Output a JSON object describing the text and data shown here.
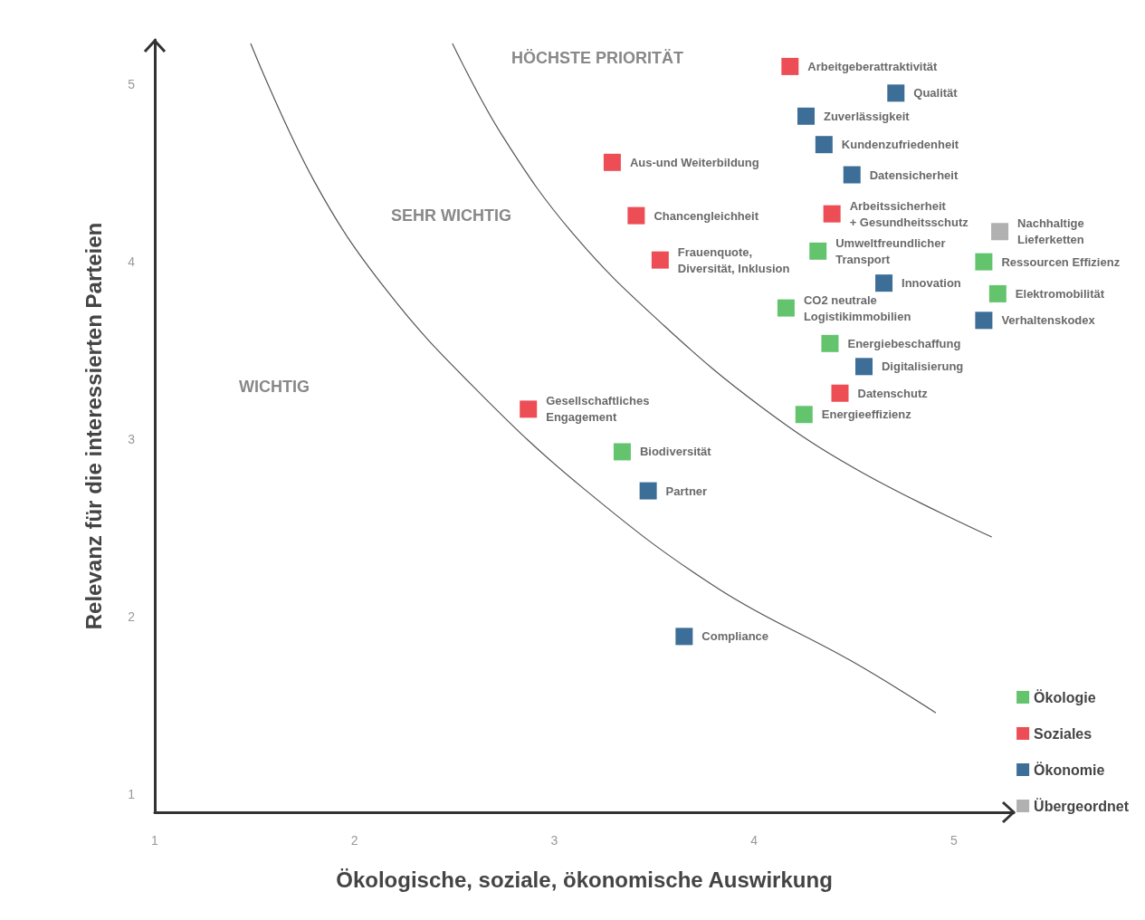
{
  "chart_data": {
    "type": "scatter",
    "xlabel": "Ökologische, soziale, ökonomische Auswirkung",
    "ylabel": "Relevanz für die interessierten Parteien",
    "xlim": [
      1,
      5.3
    ],
    "ylim": [
      0.9,
      5.25
    ],
    "xticks": [
      1,
      2,
      3,
      4,
      5
    ],
    "yticks": [
      1,
      2,
      3,
      4,
      5
    ],
    "grid": false,
    "legend": "bottom right",
    "marker": "square",
    "annotations": [
      "HÖCHSTE PRIORITÄT",
      "SEHR WICHTIG",
      "WICHTIG"
    ],
    "series": [
      {
        "name": "Ökologie",
        "color": "#3db54a",
        "x": [
          4.32,
          5.15,
          5.22,
          4.16,
          4.38,
          4.25,
          3.34
        ],
        "values": [
          4.06,
          4.0,
          3.82,
          3.74,
          3.54,
          3.14,
          2.93
        ],
        "value_labels": [
          "Umweltfreundlicher\nTransport",
          "Ressourcen Effizienz",
          "Elektromobilität",
          "CO2 neutrale\nLogistikimmobilien",
          "Energiebeschaffung",
          "Energieeffizienz",
          "Biodiversität"
        ]
      },
      {
        "name": "Soziales",
        "color": "#e8202a",
        "x": [
          4.18,
          3.29,
          3.41,
          4.39,
          3.53,
          4.43,
          2.87
        ],
        "values": [
          5.1,
          4.56,
          4.26,
          4.27,
          4.01,
          3.26,
          3.17
        ],
        "value_labels": [
          "Arbeitgeberattraktivität",
          "Aus-und Weiterbildung",
          "Chancengleichheit",
          "Arbeitssicherheit\n+ Gesundheitsschutz",
          "Frauenquote,\nDiversität, Inklusion",
          "Datenschutz",
          "Gesellschaftliches\nEngagement"
        ]
      },
      {
        "name": "Ökonomie",
        "color": "#0b4a7e",
        "x": [
          4.71,
          4.26,
          4.35,
          4.49,
          4.65,
          5.15,
          4.55,
          3.47,
          3.65
        ],
        "values": [
          4.95,
          4.82,
          4.66,
          4.49,
          3.88,
          3.67,
          3.41,
          2.71,
          1.89
        ],
        "value_labels": [
          "Qualität",
          "Zuverlässigkeit",
          "Kundenzufriedenheit",
          "Datensicherheit",
          "Innovation",
          "Verhaltenskodex",
          "Digitalisierung",
          "Partner",
          "Compliance"
        ]
      },
      {
        "name": "Übergeordnet",
        "color": "#9d9d9d",
        "x": [
          5.23
        ],
        "values": [
          4.17
        ],
        "value_labels": [
          "Nachhaltige\nLieferketten"
        ]
      },
      {
        "type": "line",
        "color": "#555555",
        "marker": "none",
        "x": [
          1.48,
          1.8,
          2.16,
          2.61,
          3.15,
          3.82,
          4.49,
          4.91
        ],
        "values": [
          5.23,
          4.45,
          3.84,
          3.28,
          2.72,
          2.16,
          1.75,
          1.46
        ]
      },
      {
        "type": "line",
        "color": "#555555",
        "marker": "none",
        "x": [
          2.49,
          2.74,
          3.1,
          3.55,
          4.04,
          4.53,
          5.19
        ],
        "values": [
          5.23,
          4.71,
          4.15,
          3.64,
          3.18,
          2.82,
          2.45
        ]
      }
    ]
  }
}
